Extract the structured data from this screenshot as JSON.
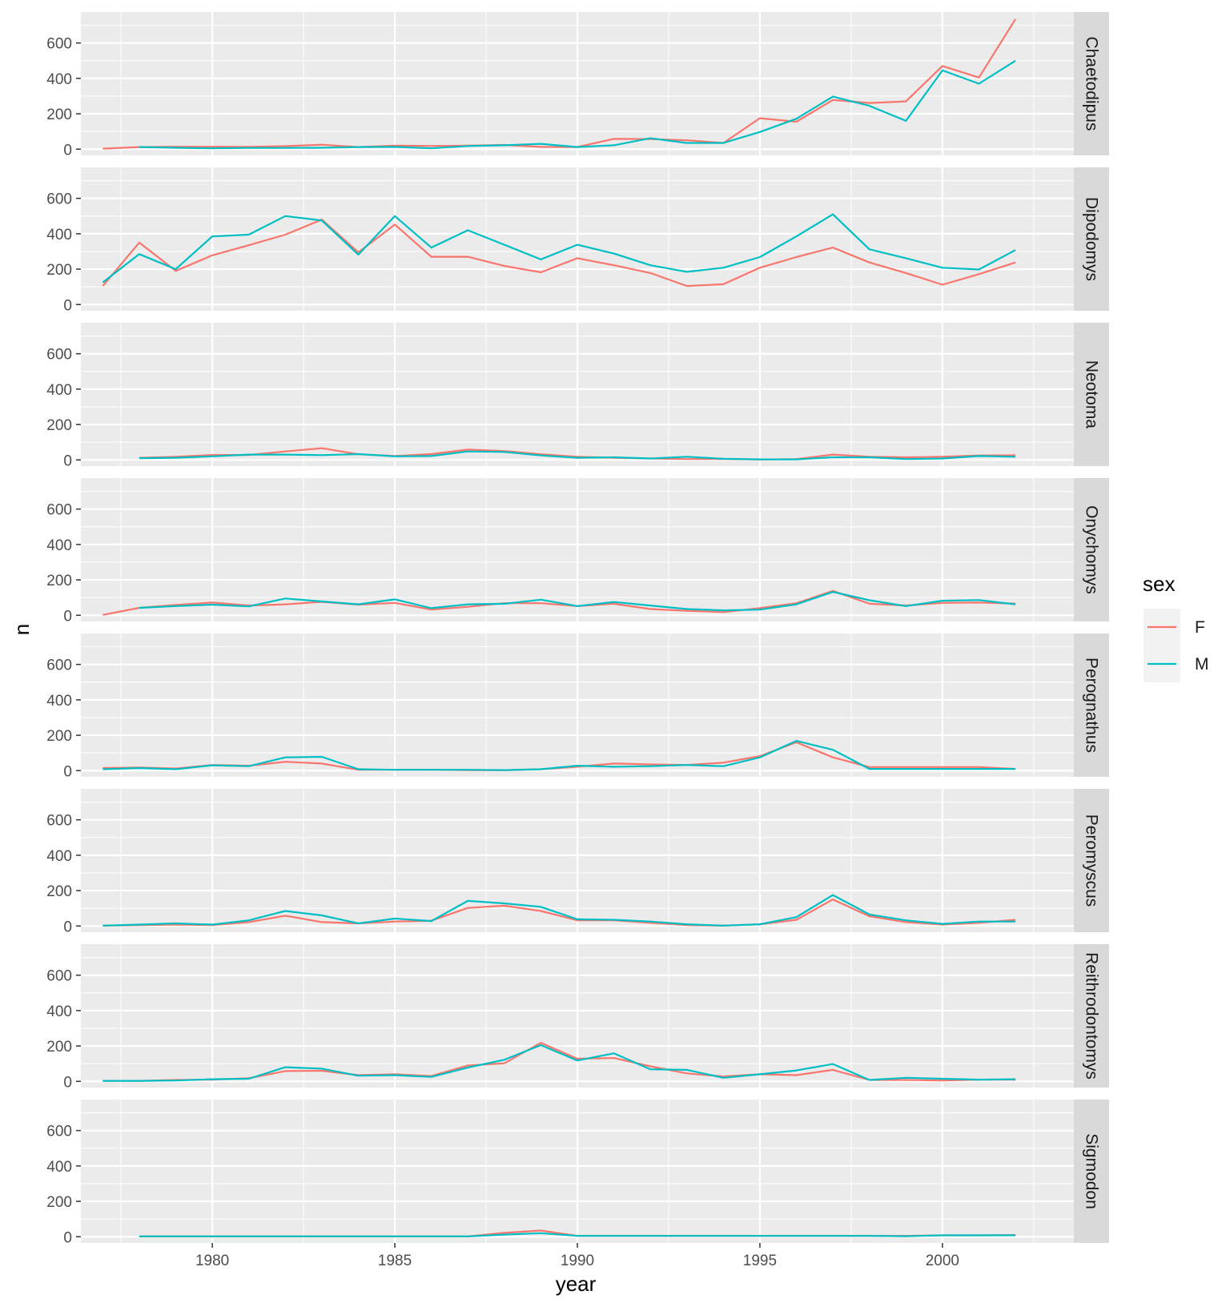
{
  "chart_data": {
    "type": "line",
    "layout": "facet-grid-rows",
    "xlabel": "year",
    "ylabel": "n",
    "xlim": [
      1976.4,
      2003.6
    ],
    "ylim": [
      -35,
      775
    ],
    "x_ticks": [
      1980,
      1985,
      1990,
      1995,
      2000
    ],
    "y_ticks": [
      0,
      200,
      400,
      600
    ],
    "grid": true,
    "legend": {
      "title": "sex",
      "position": "right"
    },
    "series_colors": {
      "F": "#F8766D",
      "M": "#00BFC4"
    },
    "panels": [
      {
        "label": "Chaetodipus",
        "series": [
          {
            "name": "F",
            "x": [
              1977,
              1978,
              1979,
              1980,
              1981,
              1982,
              1983,
              1984,
              1985,
              1986,
              1987,
              1988,
              1989,
              1990,
              1991,
              1992,
              1993,
              1994,
              1995,
              1996,
              1997,
              1998,
              1999,
              2000,
              2001,
              2002
            ],
            "y": [
              3,
              12,
              14,
              14,
              13,
              17,
              25,
              12,
              20,
              18,
              20,
              24,
              13,
              12,
              58,
              57,
              50,
              35,
              175,
              155,
              278,
              261,
              270,
              470,
              405,
              735
            ]
          },
          {
            "name": "M",
            "x": [
              1978,
              1979,
              1980,
              1981,
              1982,
              1983,
              1984,
              1985,
              1986,
              1987,
              1988,
              1989,
              1990,
              1991,
              1992,
              1993,
              1994,
              1995,
              1996,
              1997,
              1998,
              1999,
              2000,
              2001,
              2002
            ],
            "y": [
              12,
              8,
              5,
              7,
              7,
              8,
              12,
              13,
              5,
              18,
              22,
              30,
              12,
              22,
              62,
              35,
              35,
              97,
              172,
              297,
              245,
              160,
              445,
              370,
              500
            ]
          }
        ]
      },
      {
        "label": "Dipodomys",
        "series": [
          {
            "name": "F",
            "x": [
              1977,
              1978,
              1979,
              1980,
              1981,
              1982,
              1983,
              1984,
              1985,
              1986,
              1987,
              1988,
              1989,
              1990,
              1991,
              1992,
              1993,
              1994,
              1995,
              1996,
              1997,
              1998,
              1999,
              2000,
              2001,
              2002
            ],
            "y": [
              105,
              350,
              190,
              278,
              335,
              395,
              480,
              295,
              452,
              270,
              270,
              218,
              182,
              262,
              222,
              178,
              105,
              115,
              208,
              268,
              322,
              238,
              178,
              112,
              172,
              238
            ]
          },
          {
            "name": "M",
            "x": [
              1977,
              1978,
              1979,
              1980,
              1981,
              1982,
              1983,
              1984,
              1985,
              1986,
              1987,
              1988,
              1989,
              1990,
              1991,
              1992,
              1993,
              1994,
              1995,
              1996,
              1997,
              1998,
              1999,
              2000,
              2001,
              2002
            ],
            "y": [
              125,
              285,
              200,
              385,
              395,
              500,
              475,
              282,
              500,
              322,
              420,
              338,
              255,
              338,
              288,
              222,
              185,
              208,
              268,
              385,
              510,
              312,
              262,
              208,
              198,
              308
            ]
          }
        ]
      },
      {
        "label": "Neotoma",
        "series": [
          {
            "name": "F",
            "x": [
              1978,
              1979,
              1980,
              1981,
              1982,
              1983,
              1984,
              1985,
              1986,
              1987,
              1988,
              1989,
              1990,
              1991,
              1992,
              1993,
              1994,
              1995,
              1996,
              1997,
              1998,
              1999,
              2000,
              2001,
              2002
            ],
            "y": [
              12,
              18,
              28,
              28,
              48,
              66,
              32,
              22,
              33,
              58,
              50,
              32,
              18,
              12,
              8,
              5,
              5,
              2,
              5,
              30,
              18,
              15,
              18,
              25,
              26
            ]
          },
          {
            "name": "M",
            "x": [
              1978,
              1979,
              1980,
              1981,
              1982,
              1983,
              1984,
              1985,
              1986,
              1987,
              1988,
              1989,
              1990,
              1991,
              1992,
              1993,
              1994,
              1995,
              1996,
              1997,
              1998,
              1999,
              2000,
              2001,
              2002
            ],
            "y": [
              10,
              12,
              20,
              30,
              30,
              27,
              33,
              20,
              22,
              48,
              45,
              25,
              12,
              15,
              8,
              18,
              6,
              3,
              3,
              15,
              15,
              5,
              8,
              22,
              18
            ]
          }
        ]
      },
      {
        "label": "Onychomys",
        "series": [
          {
            "name": "F",
            "x": [
              1977,
              1978,
              1979,
              1980,
              1981,
              1982,
              1983,
              1984,
              1985,
              1986,
              1987,
              1988,
              1989,
              1990,
              1991,
              1992,
              1993,
              1994,
              1995,
              1996,
              1997,
              1998,
              1999,
              2000,
              2001,
              2002
            ],
            "y": [
              2,
              42,
              58,
              72,
              55,
              62,
              76,
              60,
              70,
              32,
              48,
              68,
              68,
              52,
              65,
              35,
              25,
              18,
              40,
              68,
              138,
              65,
              55,
              70,
              72,
              66
            ]
          },
          {
            "name": "M",
            "x": [
              1978,
              1979,
              1980,
              1981,
              1982,
              1983,
              1984,
              1985,
              1986,
              1987,
              1988,
              1989,
              1990,
              1991,
              1992,
              1993,
              1994,
              1995,
              1996,
              1997,
              1998,
              1999,
              2000,
              2001,
              2002
            ],
            "y": [
              42,
              52,
              60,
              50,
              95,
              78,
              62,
              90,
              40,
              62,
              65,
              88,
              52,
              75,
              55,
              35,
              28,
              32,
              62,
              132,
              85,
              52,
              82,
              86,
              62
            ]
          }
        ]
      },
      {
        "label": "Perognathus",
        "series": [
          {
            "name": "F",
            "x": [
              1977,
              1978,
              1979,
              1980,
              1981,
              1982,
              1983,
              1984,
              1985,
              1986,
              1987,
              1988,
              1989,
              1990,
              1991,
              1992,
              1993,
              1994,
              1995,
              1996,
              1997,
              1998,
              1999,
              2000,
              2001,
              2002
            ],
            "y": [
              15,
              18,
              12,
              32,
              28,
              50,
              40,
              5,
              5,
              5,
              3,
              2,
              8,
              22,
              40,
              35,
              32,
              45,
              82,
              160,
              75,
              20,
              20,
              20,
              20,
              10
            ]
          },
          {
            "name": "M",
            "x": [
              1977,
              1978,
              1979,
              1980,
              1981,
              1982,
              1983,
              1984,
              1985,
              1986,
              1987,
              1988,
              1989,
              1990,
              1991,
              1992,
              1993,
              1994,
              1995,
              1996,
              1997,
              1998,
              1999,
              2000,
              2001,
              2002
            ],
            "y": [
              8,
              15,
              8,
              30,
              25,
              75,
              78,
              8,
              5,
              5,
              5,
              3,
              8,
              28,
              22,
              25,
              32,
              25,
              75,
              168,
              118,
              10,
              10,
              10,
              10,
              10
            ]
          }
        ]
      },
      {
        "label": "Peromyscus",
        "series": [
          {
            "name": "F",
            "x": [
              1977,
              1978,
              1979,
              1980,
              1981,
              1982,
              1983,
              1984,
              1985,
              1986,
              1987,
              1988,
              1989,
              1990,
              1991,
              1992,
              1993,
              1994,
              1995,
              1996,
              1997,
              1998,
              1999,
              2000,
              2001,
              2002
            ],
            "y": [
              2,
              5,
              8,
              5,
              22,
              58,
              22,
              15,
              25,
              30,
              102,
              115,
              85,
              32,
              32,
              18,
              5,
              2,
              10,
              35,
              150,
              55,
              22,
              8,
              18,
              35
            ]
          },
          {
            "name": "M",
            "x": [
              1977,
              1978,
              1979,
              1980,
              1981,
              1982,
              1983,
              1984,
              1985,
              1986,
              1987,
              1988,
              1989,
              1990,
              1991,
              1992,
              1993,
              1994,
              1995,
              1996,
              1997,
              1998,
              1999,
              2000,
              2001,
              2002
            ],
            "y": [
              2,
              8,
              15,
              8,
              32,
              85,
              60,
              15,
              42,
              28,
              142,
              128,
              108,
              38,
              35,
              25,
              10,
              2,
              10,
              50,
              175,
              65,
              32,
              12,
              25,
              25
            ]
          }
        ]
      },
      {
        "label": "Reithrodontomys",
        "series": [
          {
            "name": "F",
            "x": [
              1977,
              1978,
              1979,
              1980,
              1981,
              1982,
              1983,
              1984,
              1985,
              1986,
              1987,
              1988,
              1989,
              1990,
              1991,
              1992,
              1993,
              1994,
              1995,
              1996,
              1997,
              1998,
              1999,
              2000,
              2001,
              2002
            ],
            "y": [
              3,
              3,
              8,
              10,
              18,
              58,
              60,
              35,
              40,
              30,
              90,
              102,
              218,
              128,
              132,
              85,
              45,
              28,
              40,
              35,
              65,
              8,
              8,
              5,
              10,
              10
            ]
          },
          {
            "name": "M",
            "x": [
              1977,
              1978,
              1979,
              1980,
              1981,
              1982,
              1983,
              1984,
              1985,
              1986,
              1987,
              1988,
              1989,
              1990,
              1991,
              1992,
              1993,
              1994,
              1995,
              1996,
              1997,
              1998,
              1999,
              2000,
              2001,
              2002
            ],
            "y": [
              3,
              3,
              5,
              12,
              15,
              80,
              72,
              32,
              35,
              25,
              78,
              122,
              205,
              118,
              158,
              68,
              65,
              20,
              40,
              62,
              98,
              8,
              20,
              15,
              10,
              12
            ]
          }
        ]
      },
      {
        "label": "Sigmodon",
        "series": [
          {
            "name": "F",
            "x": [
              1978,
              1979,
              1980,
              1981,
              1982,
              1983,
              1984,
              1985,
              1986,
              1987,
              1988,
              1989,
              1990,
              1991,
              1992,
              1993,
              1994,
              1995,
              1996,
              1997,
              1998,
              1999,
              2000,
              2001,
              2002
            ],
            "y": [
              2,
              2,
              2,
              2,
              2,
              2,
              2,
              2,
              2,
              2,
              22,
              35,
              5,
              5,
              5,
              5,
              5,
              5,
              5,
              5,
              5,
              5,
              8,
              8,
              10
            ]
          },
          {
            "name": "M",
            "x": [
              1978,
              1979,
              1980,
              1981,
              1982,
              1983,
              1984,
              1985,
              1986,
              1987,
              1988,
              1989,
              1990,
              1991,
              1992,
              1993,
              1994,
              1995,
              1996,
              1997,
              1998,
              1999,
              2000,
              2001,
              2002
            ],
            "y": [
              2,
              2,
              2,
              2,
              2,
              2,
              2,
              2,
              2,
              2,
              12,
              20,
              5,
              5,
              5,
              5,
              5,
              5,
              5,
              5,
              5,
              3,
              8,
              8,
              8
            ]
          }
        ]
      }
    ]
  }
}
